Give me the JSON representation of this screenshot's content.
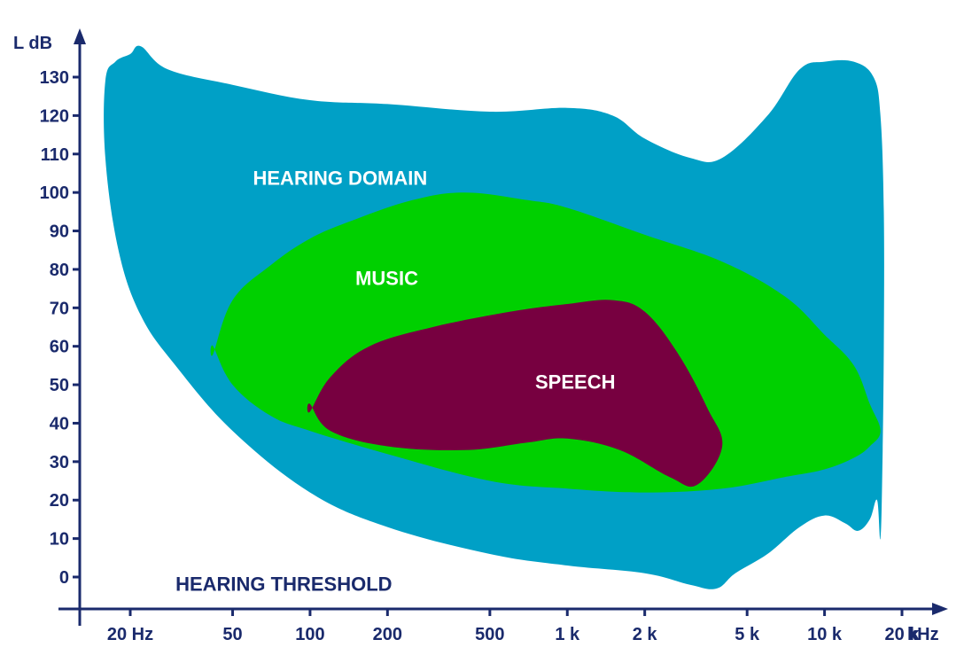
{
  "chart_data": {
    "type": "area",
    "title": "",
    "xlabel": "",
    "ylabel": "L dB",
    "x_unit_label": "kHz",
    "x_scale": "log",
    "xlim": [
      14,
      22000
    ],
    "ylim": [
      -8,
      138
    ],
    "grid": false,
    "x_ticks": [
      {
        "value": 20,
        "label": "20 Hz"
      },
      {
        "value": 50,
        "label": "50"
      },
      {
        "value": 100,
        "label": "100"
      },
      {
        "value": 200,
        "label": "200"
      },
      {
        "value": 500,
        "label": "500"
      },
      {
        "value": 1000,
        "label": "1 k"
      },
      {
        "value": 2000,
        "label": "2 k"
      },
      {
        "value": 5000,
        "label": "5 k"
      },
      {
        "value": 10000,
        "label": "10 k"
      },
      {
        "value": 20000,
        "label": "20 k"
      }
    ],
    "y_ticks": [
      {
        "value": 0,
        "label": "0"
      },
      {
        "value": 10,
        "label": "10"
      },
      {
        "value": 20,
        "label": "20"
      },
      {
        "value": 30,
        "label": "30"
      },
      {
        "value": 40,
        "label": "40"
      },
      {
        "value": 50,
        "label": "50"
      },
      {
        "value": 60,
        "label": "60"
      },
      {
        "value": 70,
        "label": "70"
      },
      {
        "value": 80,
        "label": "80"
      },
      {
        "value": 90,
        "label": "90"
      },
      {
        "value": 100,
        "label": "100"
      },
      {
        "value": 110,
        "label": "110"
      },
      {
        "value": 120,
        "label": "120"
      },
      {
        "value": 130,
        "label": "130"
      }
    ],
    "annotations": [
      {
        "text": "HEARING THRESHOLD",
        "x": 30,
        "y": -2,
        "color": "#1a2a6c"
      }
    ],
    "series": [
      {
        "name": "HEARING DOMAIN",
        "color": "#00a0c6",
        "label_at": {
          "x": 60,
          "y": 102
        },
        "upper": [
          [
            16,
            129
          ],
          [
            17.5,
            134
          ],
          [
            20,
            136
          ],
          [
            22,
            138
          ],
          [
            28,
            132
          ],
          [
            50,
            128
          ],
          [
            100,
            124
          ],
          [
            200,
            123
          ],
          [
            500,
            121
          ],
          [
            1000,
            122
          ],
          [
            1500,
            120
          ],
          [
            2000,
            114
          ],
          [
            3000,
            109
          ],
          [
            4000,
            109
          ],
          [
            6000,
            120
          ],
          [
            8000,
            132
          ],
          [
            10000,
            134
          ],
          [
            13000,
            134
          ],
          [
            15500,
            130
          ],
          [
            16500,
            120
          ],
          [
            17000,
            95
          ],
          [
            17000,
            60
          ],
          [
            16800,
            30
          ],
          [
            16500,
            10
          ]
        ],
        "lower": [
          [
            16,
            109
          ],
          [
            18,
            85
          ],
          [
            22,
            68
          ],
          [
            30,
            55
          ],
          [
            50,
            38
          ],
          [
            100,
            22
          ],
          [
            200,
            13
          ],
          [
            500,
            6
          ],
          [
            1000,
            3
          ],
          [
            2000,
            1
          ],
          [
            3000,
            -2
          ],
          [
            3800,
            -3
          ],
          [
            4500,
            1
          ],
          [
            6000,
            6
          ],
          [
            8000,
            13
          ],
          [
            10000,
            16
          ],
          [
            12000,
            14
          ],
          [
            13500,
            12
          ],
          [
            15000,
            15
          ],
          [
            16000,
            20
          ],
          [
            16500,
            10
          ]
        ]
      },
      {
        "name": "MUSIC",
        "color": "#00d000",
        "label_at": {
          "x": 150,
          "y": 76
        },
        "upper": [
          [
            42,
            58
          ],
          [
            50,
            72
          ],
          [
            70,
            81
          ],
          [
            100,
            88
          ],
          [
            150,
            93
          ],
          [
            250,
            98
          ],
          [
            400,
            100
          ],
          [
            700,
            98
          ],
          [
            1000,
            96
          ],
          [
            2000,
            89
          ],
          [
            4000,
            82
          ],
          [
            7000,
            73
          ],
          [
            10000,
            63
          ],
          [
            13000,
            55
          ],
          [
            15000,
            45
          ],
          [
            16500,
            38
          ]
        ],
        "lower": [
          [
            42,
            60
          ],
          [
            50,
            50
          ],
          [
            70,
            42
          ],
          [
            100,
            38
          ],
          [
            200,
            32
          ],
          [
            500,
            25
          ],
          [
            1000,
            23
          ],
          [
            2000,
            22
          ],
          [
            4000,
            23
          ],
          [
            7000,
            26
          ],
          [
            10000,
            28
          ],
          [
            13000,
            31
          ],
          [
            15000,
            34
          ],
          [
            16500,
            38
          ]
        ]
      },
      {
        "name": "SPEECH",
        "color": "#770040",
        "label_at": {
          "x": 750,
          "y": 49
        },
        "upper": [
          [
            100,
            43
          ],
          [
            120,
            52
          ],
          [
            170,
            60
          ],
          [
            300,
            65
          ],
          [
            600,
            69
          ],
          [
            1000,
            71
          ],
          [
            1500,
            72
          ],
          [
            2000,
            69
          ],
          [
            2700,
            58
          ],
          [
            3500,
            44
          ],
          [
            4000,
            34
          ]
        ],
        "lower": [
          [
            100,
            45
          ],
          [
            120,
            38
          ],
          [
            200,
            34
          ],
          [
            400,
            33
          ],
          [
            700,
            35
          ],
          [
            1000,
            36
          ],
          [
            1600,
            33
          ],
          [
            2500,
            26
          ],
          [
            3200,
            24
          ],
          [
            4000,
            30
          ]
        ]
      }
    ]
  },
  "colors": {
    "axis": "#1a2a6c",
    "background": "#ffffff",
    "label_text": "#ffffff"
  }
}
